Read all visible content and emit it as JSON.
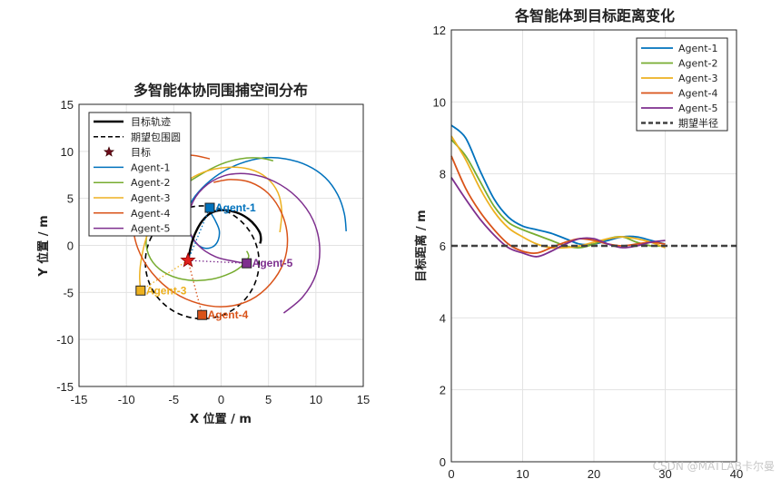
{
  "colors": {
    "agent1": "#0072BD",
    "agent2": "#77AC30",
    "agent3": "#EDB120",
    "agent4": "#D95319",
    "agent5": "#7E2F8E",
    "target": "#000000",
    "star": "#A2142F",
    "radius_line": "#404040"
  },
  "watermark": "CSDN @MATLAB卡尔曼",
  "chart_data": [
    {
      "type": "line",
      "title": "多智能体协同围捕空间分布",
      "xlabel": "X 位置 / m",
      "ylabel": "Y 位置 / m",
      "xlim": [
        -15,
        15
      ],
      "ylim": [
        -15,
        15
      ],
      "xticks": [
        "-15",
        "-10",
        "-5",
        "0",
        "5",
        "10",
        "15"
      ],
      "yticks": [
        "-15",
        "-10",
        "-5",
        "0",
        "5",
        "10",
        "15"
      ],
      "grid": true,
      "legend_position": "top-left",
      "legend": [
        "目标轨迹",
        "期望包围圆",
        "目标",
        "Agent-1",
        "Agent-2",
        "Agent-3",
        "Agent-4",
        "Agent-5"
      ],
      "target_trajectory": {
        "x": [
          -3.5,
          -3.0,
          -2.2,
          -1.3,
          -0.3,
          0.8,
          1.9,
          2.9,
          3.6,
          4.1,
          4.2,
          4.1
        ],
        "y": [
          -1.6,
          0.6,
          2.3,
          3.3,
          3.7,
          3.7,
          3.4,
          2.8,
          2.1,
          1.3,
          0.6,
          0.2
        ]
      },
      "desired_circle": {
        "center": [
          -2.0,
          -1.8
        ],
        "radius": 6.0
      },
      "target": {
        "x": -3.5,
        "y": -1.6
      },
      "series": [
        {
          "name": "Agent-1",
          "label": "Agent-1",
          "x": [
            13.2,
            13.0,
            12.3,
            11.0,
            9.1,
            6.8,
            4.4,
            2.0,
            -0.2,
            -2.0,
            -3.2,
            -3.6,
            -3.3,
            -2.6,
            -1.7,
            -0.8,
            -0.3,
            -0.2,
            -0.6,
            -1.1,
            -1.2
          ],
          "y": [
            1.5,
            3.4,
            5.4,
            7.2,
            8.5,
            9.2,
            9.3,
            8.7,
            7.6,
            6.1,
            4.5,
            2.8,
            1.3,
            0.2,
            -0.3,
            -0.1,
            0.6,
            1.6,
            2.6,
            3.5,
            4.0
          ],
          "end": [
            -1.2,
            4.0
          ]
        },
        {
          "name": "Agent-2",
          "label": "Agent-2",
          "x": [
            5.5,
            4.0,
            2.0,
            -0.1,
            -2.4,
            -4.6,
            -6.4,
            -7.6,
            -7.9,
            -7.2,
            -5.6,
            -3.4,
            -1.0,
            1.1,
            2.4,
            2.9,
            2.7
          ],
          "y": [
            9.0,
            9.3,
            9.2,
            8.6,
            7.4,
            5.9,
            4.1,
            2.0,
            0.0,
            -1.8,
            -3.1,
            -3.7,
            -3.6,
            -2.9,
            -2.0,
            -1.2,
            -0.6
          ],
          "end": null
        },
        {
          "name": "Agent-3",
          "label": "Agent-3",
          "x": [
            6.2,
            6.4,
            6.0,
            4.8,
            3.0,
            0.6,
            -1.8,
            -4.0,
            -5.8,
            -7.1,
            -7.9,
            -8.4,
            -8.6,
            -8.5
          ],
          "y": [
            1.4,
            3.6,
            5.6,
            7.2,
            8.1,
            8.3,
            7.8,
            6.6,
            4.9,
            2.9,
            0.8,
            -1.3,
            -3.2,
            -4.8
          ],
          "end": [
            -8.5,
            -4.8
          ]
        },
        {
          "name": "Agent-4",
          "label": "Agent-4",
          "x": [
            -1.2,
            -3.4,
            -5.6,
            -7.5,
            -8.8,
            -9.3,
            -8.8,
            -7.3,
            -5.0,
            -2.3,
            0.5,
            3.1,
            5.2,
            6.6,
            7.0,
            6.4,
            5.0,
            3.1,
            1.0,
            -0.8,
            -2.0
          ],
          "y": [
            9.2,
            9.6,
            9.0,
            7.5,
            5.2,
            2.5,
            -0.3,
            -2.9,
            -5.0,
            -6.2,
            -6.5,
            -5.8,
            -4.1,
            -1.8,
            0.8,
            3.4,
            5.5,
            6.7,
            7.0,
            6.7,
            -7.4
          ],
          "end": [
            -2.0,
            -7.4
          ]
        },
        {
          "name": "Agent-5",
          "label": "Agent-5",
          "x": [
            6.6,
            8.6,
            10.0,
            10.4,
            9.7,
            8.0,
            5.6,
            2.9,
            0.3,
            -1.9,
            -3.2,
            -3.4,
            -2.4,
            -0.6,
            1.4,
            2.6,
            2.7
          ],
          "y": [
            -7.2,
            -5.5,
            -3.1,
            -0.2,
            2.7,
            5.1,
            6.8,
            7.6,
            7.4,
            6.1,
            4.1,
            1.8,
            0.0,
            -1.2,
            -1.7,
            -1.9,
            -1.9
          ],
          "end": [
            2.7,
            -1.9
          ]
        }
      ]
    },
    {
      "type": "line",
      "title": "各智能体到目标距离变化",
      "xlabel": "",
      "ylabel": "目标距离 / m",
      "xlim": [
        0,
        40
      ],
      "ylim": [
        0,
        12
      ],
      "xticks": [
        "0",
        "10",
        "20",
        "30",
        "40"
      ],
      "yticks": [
        "0",
        "2",
        "4",
        "6",
        "8",
        "10",
        "12"
      ],
      "grid": true,
      "legend_position": "top-right",
      "legend": [
        "Agent-1",
        "Agent-2",
        "Agent-3",
        "Agent-4",
        "Agent-5",
        "期望半径"
      ],
      "x": [
        0,
        2,
        4,
        6,
        8,
        10,
        12,
        14,
        16,
        18,
        20,
        22,
        24,
        26,
        28,
        30
      ],
      "series": [
        {
          "name": "Agent-1",
          "values": [
            9.35,
            9.0,
            8.1,
            7.3,
            6.8,
            6.55,
            6.45,
            6.35,
            6.2,
            6.05,
            6.05,
            6.15,
            6.25,
            6.25,
            6.15,
            6.05
          ]
        },
        {
          "name": "Agent-2",
          "values": [
            8.95,
            8.5,
            7.8,
            7.1,
            6.65,
            6.45,
            6.3,
            6.15,
            6.0,
            5.95,
            6.05,
            6.2,
            6.25,
            6.1,
            6.0,
            6.0
          ]
        },
        {
          "name": "Agent-3",
          "values": [
            9.05,
            8.4,
            7.6,
            6.95,
            6.5,
            6.25,
            6.05,
            5.95,
            5.95,
            6.0,
            6.1,
            6.2,
            6.25,
            6.2,
            6.1,
            5.95
          ]
        },
        {
          "name": "Agent-4",
          "values": [
            8.5,
            7.6,
            6.95,
            6.45,
            6.05,
            5.85,
            5.8,
            5.95,
            6.1,
            6.2,
            6.15,
            6.05,
            6.0,
            6.05,
            6.1,
            6.05
          ]
        },
        {
          "name": "Agent-5",
          "values": [
            7.9,
            7.3,
            6.75,
            6.3,
            5.95,
            5.8,
            5.7,
            5.85,
            6.05,
            6.2,
            6.2,
            6.05,
            5.95,
            6.0,
            6.1,
            6.15
          ]
        }
      ],
      "reference": {
        "name": "期望半径",
        "value": 6.0
      }
    }
  ]
}
